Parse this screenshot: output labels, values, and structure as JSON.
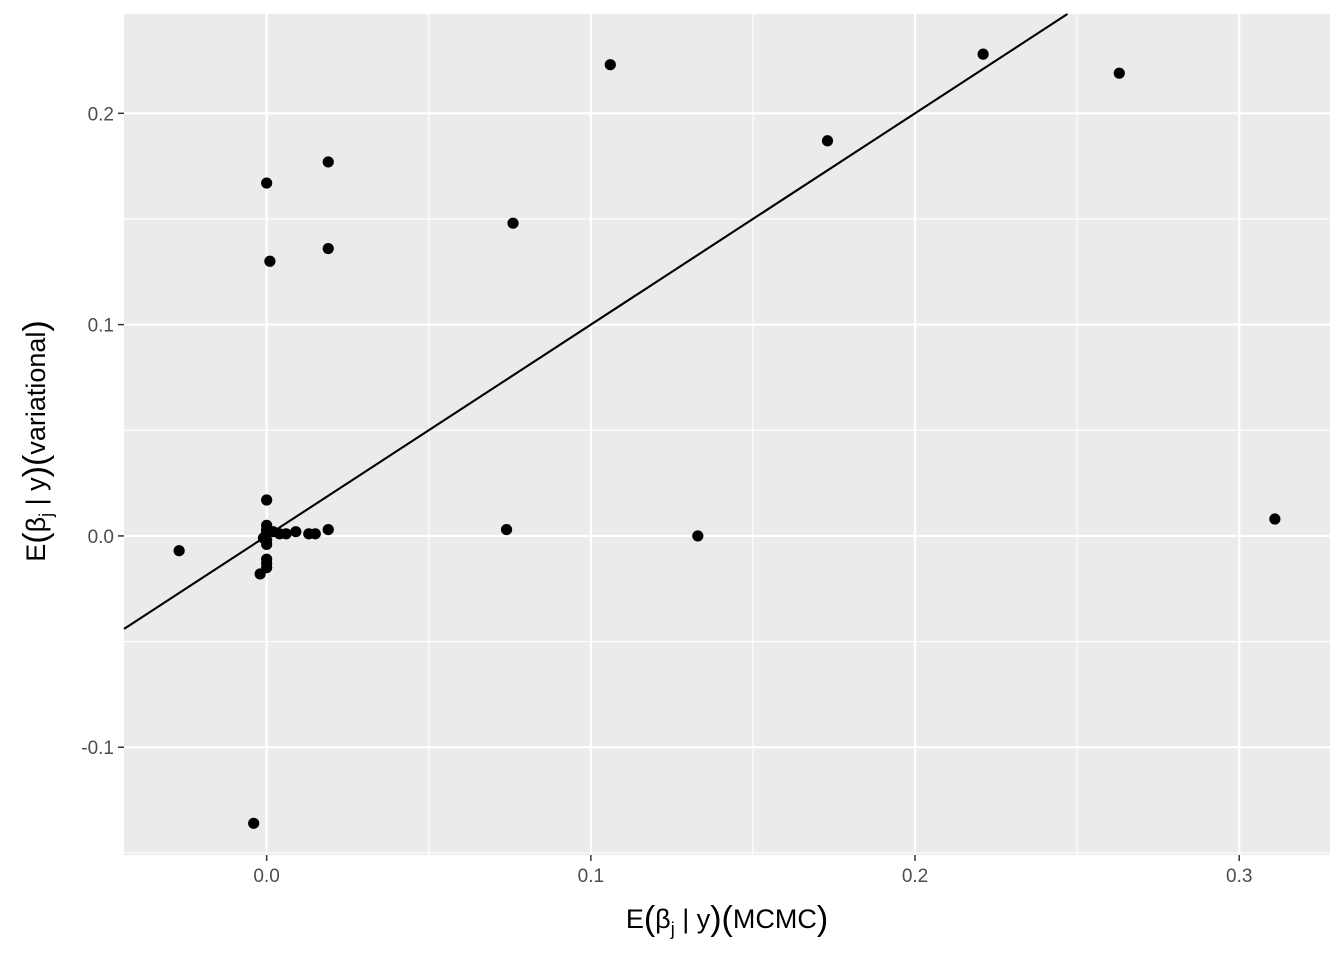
{
  "chart_data": {
    "type": "scatter",
    "title": "",
    "xlabel": {
      "prefix": "E",
      "beta": "β",
      "sub": "j",
      "cond": " | y",
      "suffix": "MCMC"
    },
    "ylabel": {
      "prefix": "E",
      "beta": "β",
      "sub": "j",
      "cond": " | y",
      "suffix": "variational"
    },
    "xlim": [
      -0.044,
      0.328
    ],
    "ylim": [
      -0.151,
      0.247
    ],
    "x_ticks": [
      0.0,
      0.1,
      0.2,
      0.3
    ],
    "x_tick_labels": [
      "0.0",
      "0.1",
      "0.2",
      "0.3"
    ],
    "y_ticks": [
      -0.1,
      0.0,
      0.1,
      0.2
    ],
    "y_tick_labels": [
      "-0.1",
      "0.0",
      "0.1",
      "0.2"
    ],
    "grid": true,
    "reference_line": {
      "slope": 1,
      "intercept": 0
    },
    "colors": {
      "panel": "#ebebeb",
      "grid": "#ffffff",
      "point": "#000000",
      "text": "#4d4d4d"
    },
    "points": [
      {
        "x": -0.027,
        "y": -0.007
      },
      {
        "x": -0.004,
        "y": -0.136
      },
      {
        "x": -0.002,
        "y": -0.018
      },
      {
        "x": -0.001,
        "y": -0.001
      },
      {
        "x": 0.0,
        "y": 0.167
      },
      {
        "x": 0.001,
        "y": 0.13
      },
      {
        "x": 0.019,
        "y": 0.136
      },
      {
        "x": 0.019,
        "y": 0.177
      },
      {
        "x": 0.0,
        "y": 0.017
      },
      {
        "x": 0.0,
        "y": 0.005
      },
      {
        "x": 0.0,
        "y": 0.003
      },
      {
        "x": 0.0,
        "y": 0.002
      },
      {
        "x": 0.0,
        "y": 0.001
      },
      {
        "x": 0.0,
        "y": -0.002
      },
      {
        "x": 0.0,
        "y": -0.004
      },
      {
        "x": 0.0,
        "y": -0.011
      },
      {
        "x": 0.0,
        "y": -0.013
      },
      {
        "x": 0.0,
        "y": -0.015
      },
      {
        "x": 0.002,
        "y": 0.002
      },
      {
        "x": 0.004,
        "y": 0.001
      },
      {
        "x": 0.006,
        "y": 0.001
      },
      {
        "x": 0.009,
        "y": 0.002
      },
      {
        "x": 0.013,
        "y": 0.001
      },
      {
        "x": 0.015,
        "y": 0.001
      },
      {
        "x": 0.019,
        "y": 0.003
      },
      {
        "x": 0.074,
        "y": 0.003
      },
      {
        "x": 0.076,
        "y": 0.148
      },
      {
        "x": 0.106,
        "y": 0.223
      },
      {
        "x": 0.133,
        "y": 0.0
      },
      {
        "x": 0.173,
        "y": 0.187
      },
      {
        "x": 0.221,
        "y": 0.228
      },
      {
        "x": 0.263,
        "y": 0.219
      },
      {
        "x": 0.311,
        "y": 0.008
      }
    ]
  }
}
